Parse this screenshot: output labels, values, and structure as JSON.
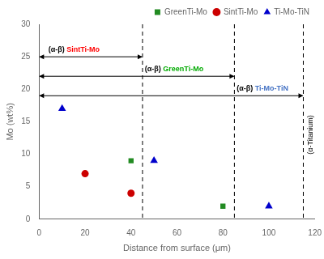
{
  "chart_data": {
    "type": "scatter",
    "xlabel": "Distance from surface (μm)",
    "ylabel": "Mo (wt%)",
    "xlim": [
      0,
      120
    ],
    "ylim": [
      0,
      30
    ],
    "xticks": [
      0,
      20,
      40,
      60,
      80,
      100,
      120
    ],
    "yticks": [
      0,
      5,
      10,
      15,
      20,
      25,
      30
    ],
    "grid": false,
    "legend": "upper right",
    "series": [
      {
        "name": "GreenTi-Mo",
        "color": "#228B22",
        "marker": "square",
        "x": [
          40,
          80
        ],
        "values": [
          9,
          2
        ]
      },
      {
        "name": "SintTi-Mo",
        "color": "#CC0000",
        "marker": "circle",
        "x": [
          20,
          40
        ],
        "values": [
          7,
          4
        ]
      },
      {
        "name": "Ti-Mo-TiN",
        "color": "#0000CC",
        "marker": "triangle",
        "x": [
          10,
          50,
          100
        ],
        "values": [
          17,
          9,
          2
        ]
      }
    ],
    "vlines": {
      "x": [
        45,
        85,
        115
      ],
      "color": "#000000",
      "line_style": "dashed"
    },
    "arrows": [
      {
        "x1": 0,
        "x2": 45,
        "y": 25
      },
      {
        "x1": 0,
        "x2": 85,
        "y": 22
      },
      {
        "x1": 0,
        "x2": 115,
        "y": 19
      }
    ],
    "annotations": [
      {
        "x": 4,
        "y": 25.5,
        "parts": [
          {
            "text": "(α-β) ",
            "color": "#000000"
          },
          {
            "text": "SintTi-Mo",
            "color": "#FF0000"
          }
        ]
      },
      {
        "x": 46,
        "y": 22.5,
        "parts": [
          {
            "text": "(α-β) ",
            "color": "#000000"
          },
          {
            "text": "GreenTi-Mo",
            "color": "#00AA00"
          }
        ]
      },
      {
        "x": 86,
        "y": 19.5,
        "parts": [
          {
            "text": "(α-β) ",
            "color": "#000000"
          },
          {
            "text": "Ti-Mo-TiN",
            "color": "#4472C4"
          }
        ]
      },
      {
        "x": 116.5,
        "y": 13,
        "text": "(α-Titanium)",
        "color": "#000000",
        "orientation": "vertical"
      }
    ]
  }
}
